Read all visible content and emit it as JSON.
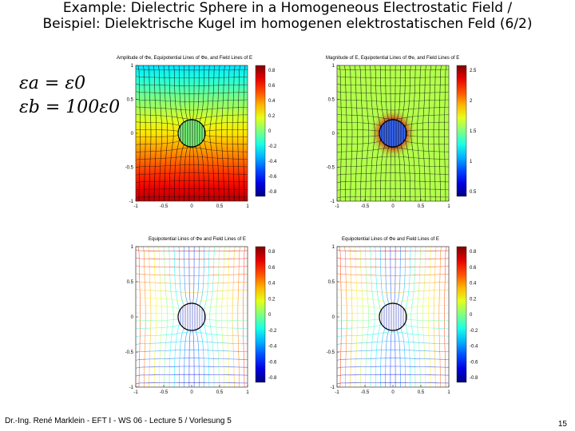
{
  "slide": {
    "title_line1": "Example: Dielectric Sphere in a Homogeneous Electrostatic Field /",
    "title_line2": "Beispiel: Dielektrische Kugel im homogenen elektrostatischen Feld (6/2)",
    "eq1": "εa = ε0",
    "eq2": "εb = 100ε0",
    "footer": "Dr.-Ing. René Marklein - EFT I - WS 06 - Lecture 5 / Vorlesung 5",
    "page_number": "15"
  },
  "plots": [
    {
      "title": "Amplitude of Φe, Equipotential Lines of Φe, and Field Lines of E",
      "type": "filled",
      "colorbar": [
        "0.8",
        "0.6",
        "0.4",
        "0.2",
        "0",
        "-0.2",
        "-0.4",
        "-0.6",
        "-0.8"
      ]
    },
    {
      "title": "Magnitude of E, Equipotential Lines of Φe, and Field Lines of E",
      "type": "magnitude",
      "colorbar": [
        "2.5",
        "2",
        "1.5",
        "1",
        "0.5"
      ]
    },
    {
      "title": "Equipotential Lines of Φe and Field Lines of E",
      "type": "lines",
      "colorbar": [
        "0.8",
        "0.6",
        "0.4",
        "0.2",
        "0",
        "-0.2",
        "-0.4",
        "-0.6",
        "-0.8"
      ]
    },
    {
      "title": "Equipotential Lines of Φe and Field Lines of E",
      "type": "lines",
      "colorbar": [
        "0.8",
        "0.6",
        "0.4",
        "0.2",
        "0",
        "-0.2",
        "-0.4",
        "-0.6",
        "-0.8"
      ]
    }
  ]
}
